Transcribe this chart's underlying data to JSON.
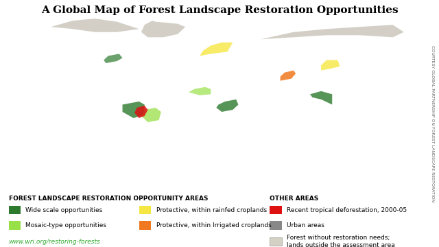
{
  "title": "A Global Map of Forest Landscape Restoration Opportunities",
  "title_fontsize": 11,
  "title_font": "serif",
  "title_fontweight": "bold",
  "background_color": "#ffffff",
  "ocean_color": "#3d6882",
  "land_color": "#ffffff",
  "no_data_color": "#c8c4b8",
  "sidebar_text": "COURTESY GLOBAL PARTNERSHIP ON FOREST LANDSCAPE RESTORATION",
  "sidebar_color": "#666666",
  "sidebar_fontsize": 4.5,
  "legend_left_title": "FOREST LANDSCAPE RESTORATION OPPORTUNITY AREAS",
  "legend_right_title": "OTHER AREAS",
  "legend_left_items": [
    {
      "color": "#2d7a2d",
      "label": "Wide scale opportunities"
    },
    {
      "color": "#98e048",
      "label": "Mosaic-type opportunities"
    },
    {
      "color": "#f5e642",
      "label": "Protective, within rainfed croplands"
    },
    {
      "color": "#f07820",
      "label": "Protective, within Irrigated croplands"
    }
  ],
  "legend_right_items": [
    {
      "color": "#dd1111",
      "label": "Recent tropical deforestation, 2000-05"
    },
    {
      "color": "#888888",
      "label": "Urban areas"
    },
    {
      "color": "#d4d0c4",
      "label": "Forest without restoration needs;\nlands outside the assessment area"
    }
  ],
  "url_text": "www.wri.org/restoring-forests",
  "url_color": "#33aa33",
  "url_fontsize": 6.5,
  "legend_title_fontsize": 6.5,
  "legend_item_fontsize": 6.5
}
